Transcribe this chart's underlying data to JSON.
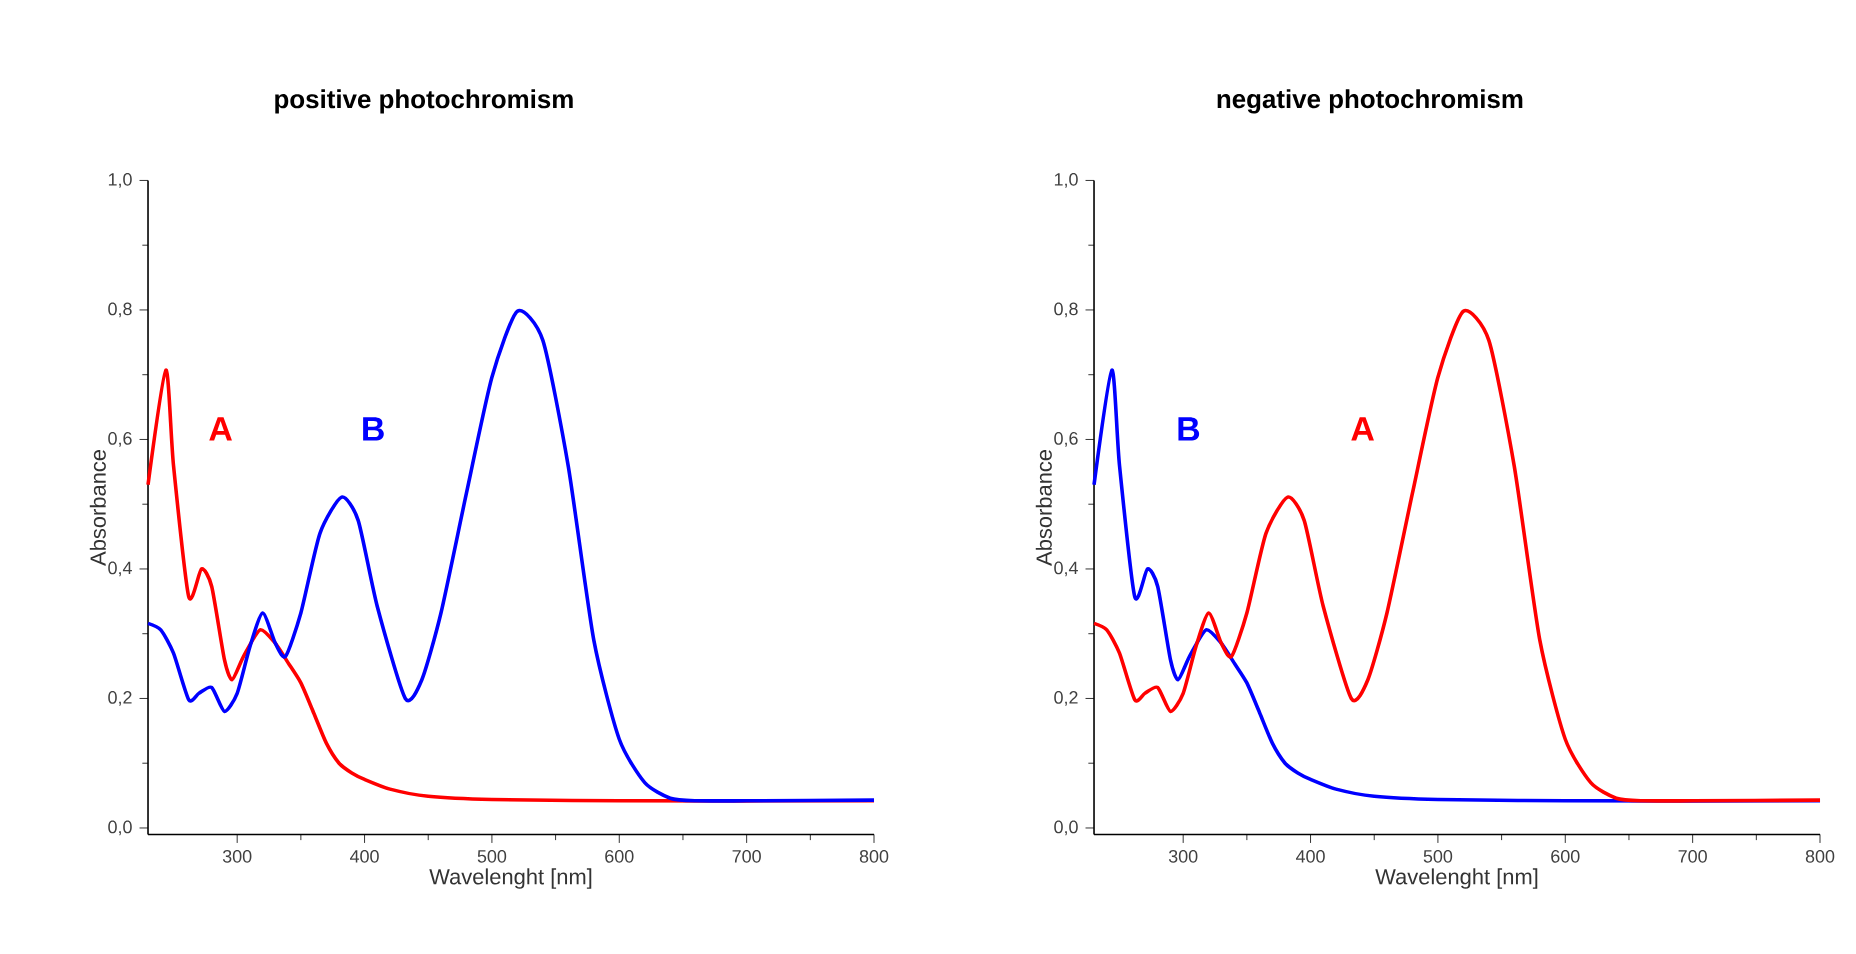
{
  "chart_data": [
    {
      "type": "line",
      "title": "positive photochromism",
      "xlabel": "Wavelenght [nm]",
      "ylabel": "Absorbance",
      "xlim": [
        230,
        800
      ],
      "ylim": [
        -0.01,
        1.0
      ],
      "xticks": [
        300,
        400,
        500,
        600,
        700,
        800
      ],
      "yticks": [
        {
          "value": 0,
          "label": "0,0"
        },
        {
          "value": 0.2,
          "label": "0,2"
        },
        {
          "value": 0.4,
          "label": "0,4"
        },
        {
          "value": 0.6,
          "label": "0,6"
        },
        {
          "value": 0.8,
          "label": "0,8"
        },
        {
          "value": 1.0,
          "label": "1,0"
        }
      ],
      "line_style": "solid",
      "series": [
        {
          "name": "A",
          "color": "#ff0000",
          "x": [
            230,
            244,
            250,
            262,
            272,
            280,
            290,
            296,
            305,
            318,
            330,
            340,
            350,
            360,
            370,
            380,
            390,
            400,
            420,
            450,
            500,
            600,
            700,
            800
          ],
          "values": [
            0.53,
            0.707,
            0.56,
            0.357,
            0.4,
            0.373,
            0.26,
            0.229,
            0.265,
            0.306,
            0.285,
            0.255,
            0.224,
            0.178,
            0.131,
            0.1,
            0.085,
            0.075,
            0.06,
            0.049,
            0.044,
            0.042,
            null,
            0.042
          ]
        },
        {
          "name": "B",
          "color": "#0000ff",
          "x": [
            230,
            240,
            250,
            262,
            270,
            280,
            290,
            300,
            310,
            320,
            330,
            338,
            350,
            365,
            382,
            395,
            410,
            432,
            445,
            460,
            480,
            500,
            520,
            540,
            560,
            580,
            600,
            620,
            640,
            660,
            700,
            800
          ],
          "values": [
            0.316,
            0.306,
            0.27,
            0.198,
            0.208,
            0.217,
            0.18,
            0.208,
            0.28,
            0.332,
            0.285,
            0.265,
            0.332,
            0.455,
            0.511,
            0.475,
            0.342,
            0.2,
            0.229,
            0.332,
            0.517,
            0.696,
            0.798,
            0.753,
            0.558,
            0.29,
            0.137,
            0.07,
            0.046,
            0.042,
            0.042,
            0.043
          ]
        }
      ]
    },
    {
      "type": "line",
      "title": "negative photochromism",
      "xlabel": "Wavelenght [nm]",
      "ylabel": "Absorbance",
      "xlim": [
        230,
        800
      ],
      "ylim": [
        -0.01,
        1.0
      ],
      "xticks": [
        300,
        400,
        500,
        600,
        700,
        800
      ],
      "yticks": [
        {
          "value": 0,
          "label": "0,0"
        },
        {
          "value": 0.2,
          "label": "0,2"
        },
        {
          "value": 0.4,
          "label": "0,4"
        },
        {
          "value": 0.6,
          "label": "0,6"
        },
        {
          "value": 0.8,
          "label": "0,8"
        },
        {
          "value": 1.0,
          "label": "1,0"
        }
      ],
      "line_style": "solid",
      "series": [
        {
          "name": "B",
          "color": "#0000ff",
          "x": [
            230,
            244,
            250,
            262,
            272,
            280,
            290,
            296,
            305,
            318,
            330,
            340,
            350,
            360,
            370,
            380,
            390,
            400,
            420,
            450,
            500,
            600,
            700,
            800
          ],
          "values": [
            0.53,
            0.707,
            0.56,
            0.357,
            0.4,
            0.373,
            0.26,
            0.229,
            0.265,
            0.306,
            0.285,
            0.255,
            0.224,
            0.178,
            0.131,
            0.1,
            0.085,
            0.075,
            0.06,
            0.049,
            0.044,
            0.042,
            null,
            0.042
          ]
        },
        {
          "name": "A",
          "color": "#ff0000",
          "x": [
            230,
            240,
            250,
            262,
            270,
            280,
            290,
            300,
            310,
            320,
            330,
            338,
            350,
            365,
            382,
            395,
            410,
            432,
            445,
            460,
            480,
            500,
            520,
            540,
            560,
            580,
            600,
            620,
            640,
            660,
            700,
            800
          ],
          "values": [
            0.316,
            0.306,
            0.27,
            0.198,
            0.208,
            0.217,
            0.18,
            0.208,
            0.28,
            0.332,
            0.285,
            0.265,
            0.332,
            0.455,
            0.511,
            0.475,
            0.342,
            0.2,
            0.229,
            0.332,
            0.517,
            0.696,
            0.798,
            0.753,
            0.558,
            0.29,
            0.137,
            0.07,
            0.046,
            0.042,
            0.042,
            0.043
          ]
        }
      ]
    }
  ]
}
